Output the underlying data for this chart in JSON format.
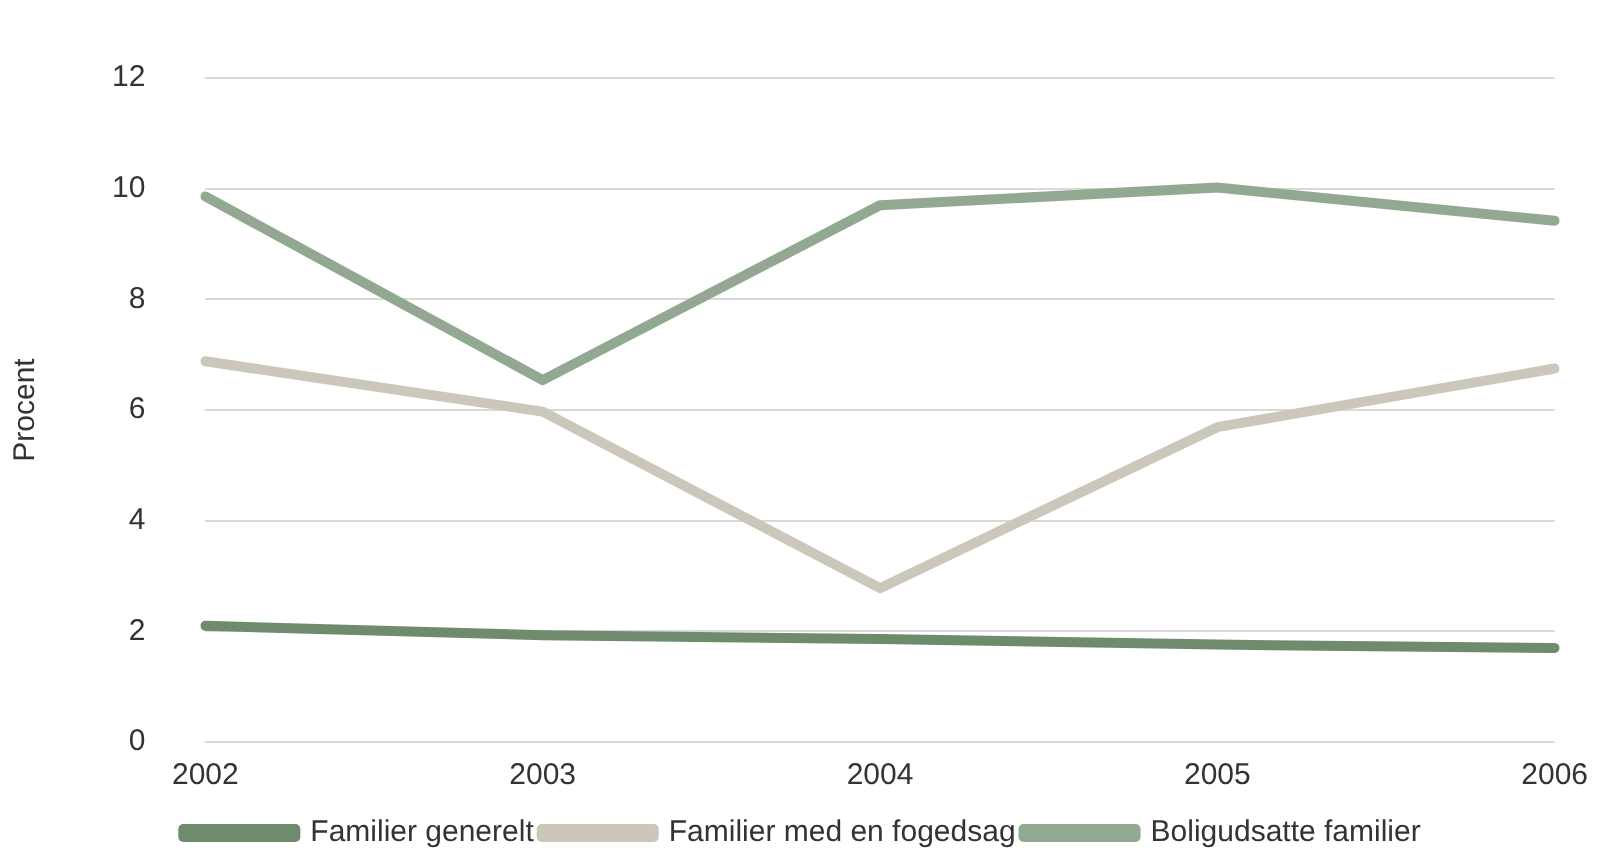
{
  "chart_data": {
    "type": "line",
    "ylabel": "Procent",
    "categories": [
      "2002",
      "2003",
      "2004",
      "2005",
      "2006"
    ],
    "series": [
      {
        "name": "Familier generelt",
        "color": "#6e8b6e",
        "values": [
          2.1,
          1.93,
          1.86,
          1.76,
          1.7
        ]
      },
      {
        "name": "Familier med en fogedsag",
        "color": "#cbc7ba",
        "values": [
          6.88,
          5.97,
          2.78,
          5.69,
          6.75
        ]
      },
      {
        "name": "Boligudsatte familier",
        "color": "#93a891",
        "values": [
          9.86,
          6.54,
          9.7,
          10.02,
          9.42
        ]
      }
    ],
    "ylim": [
      0,
      12
    ],
    "yticks": [
      0,
      2,
      4,
      6,
      8,
      10,
      12
    ],
    "grid": "y",
    "legend": "bottom",
    "marker": "none",
    "line_style": "solid"
  }
}
